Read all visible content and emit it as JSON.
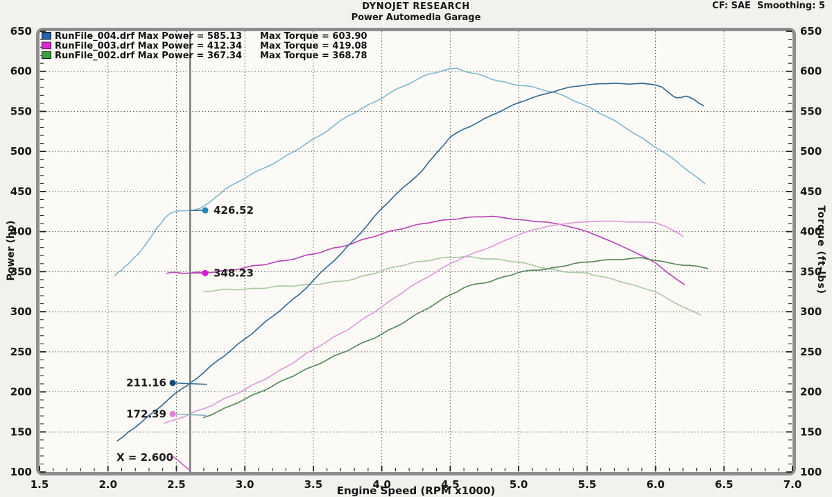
{
  "header": {
    "title": "DYNOJET RESEARCH",
    "subtitle": "Power Automedia Garage",
    "cf_smoothing": "CF: SAE  Smoothing: 5"
  },
  "legend": {
    "rows": [
      {
        "file_power_label": "RunFile_004.drf Max Power = 585.13",
        "torque_label": "Max Torque = 603.90",
        "swatch_color": "#2363ab"
      },
      {
        "file_power_label": "RunFile_003.drf Max Power = 412.34",
        "torque_label": "Max Torque = 419.08",
        "swatch_color": "#df25d4"
      },
      {
        "file_power_label": "RunFile_002.drf Max Power = 367.34",
        "torque_label": "Max Torque = 368.78",
        "swatch_color": "#33a23f"
      }
    ]
  },
  "axes": {
    "x": {
      "label": "Engine Speed (RPM x1000)",
      "min": 1.5,
      "max": 7.0,
      "major_step": 0.5,
      "minor_step": 0.1,
      "tick_labels": [
        "1.5",
        "2.0",
        "2.5",
        "3.0",
        "3.5",
        "4.0",
        "4.5",
        "5.0",
        "5.5",
        "6.0",
        "6.5",
        "7.0"
      ]
    },
    "y_left": {
      "label": "Power (hp)",
      "min": 100,
      "max": 650,
      "major_step": 50,
      "minor_step": 10,
      "tick_labels": [
        "100",
        "150",
        "200",
        "250",
        "300",
        "350",
        "400",
        "450",
        "500",
        "550",
        "600",
        "650"
      ]
    },
    "y_right": {
      "label": "Torque (ft-lbs)",
      "min": 100,
      "max": 650,
      "major_step": 50,
      "minor_step": 10,
      "tick_labels": [
        "100",
        "150",
        "200",
        "250",
        "300",
        "350",
        "400",
        "450",
        "500",
        "550",
        "600",
        "650"
      ]
    }
  },
  "cursor": {
    "x_value": 2.6,
    "x_display": "X = 2.600",
    "readouts": [
      {
        "label": "426.52",
        "value": 426.52,
        "side": "right",
        "dot_color": "#2387b4",
        "leader_color": "#3a6d94"
      },
      {
        "label": "348.23",
        "value": 348.23,
        "side": "right",
        "dot_color": "#e214d4",
        "leader_color": "#b84bb4"
      },
      {
        "label": "211.16",
        "value": 211.16,
        "side": "left",
        "dot_color": "#16497e",
        "leader_color": "#3a6d94"
      },
      {
        "label": "172.39",
        "value": 172.39,
        "side": "left",
        "dot_color": "#e57ddc",
        "leader_color": "#8fb3c8"
      }
    ]
  },
  "chart_data": {
    "type": "line",
    "title": "DYNOJET RESEARCH - Power Automedia Garage",
    "xlabel": "Engine Speed (RPM x1000)",
    "ylabel_left": "Power (hp)",
    "ylabel_right": "Torque (ft-lbs)",
    "xlim": [
      1.5,
      7.0
    ],
    "ylim": [
      100,
      650
    ],
    "grid": "dotted major gridlines every 0.5 RPM and 50 units",
    "legend_position": "top-left inside plot",
    "series": [
      {
        "id": "torque_004",
        "name": "RunFile_004.drf Torque",
        "color": "#88b9cf",
        "max": 603.9,
        "points": [
          [
            2.05,
            345
          ],
          [
            2.1,
            352
          ],
          [
            2.15,
            360
          ],
          [
            2.22,
            372
          ],
          [
            2.3,
            390
          ],
          [
            2.36,
            405
          ],
          [
            2.42,
            418
          ],
          [
            2.47,
            424
          ],
          [
            2.52,
            426
          ],
          [
            2.6,
            426.52
          ],
          [
            2.65,
            428
          ],
          [
            2.7,
            432
          ],
          [
            2.78,
            442
          ],
          [
            2.85,
            452
          ],
          [
            2.95,
            462
          ],
          [
            3.05,
            472
          ],
          [
            3.15,
            480
          ],
          [
            3.25,
            489
          ],
          [
            3.35,
            499
          ],
          [
            3.45,
            510
          ],
          [
            3.55,
            520
          ],
          [
            3.65,
            532
          ],
          [
            3.75,
            544
          ],
          [
            3.85,
            553
          ],
          [
            3.95,
            562
          ],
          [
            4.05,
            572
          ],
          [
            4.15,
            581
          ],
          [
            4.25,
            589
          ],
          [
            4.35,
            597
          ],
          [
            4.45,
            601
          ],
          [
            4.55,
            603.9
          ],
          [
            4.65,
            598
          ],
          [
            4.75,
            594
          ],
          [
            4.85,
            588
          ],
          [
            4.95,
            584
          ],
          [
            5.05,
            582
          ],
          [
            5.15,
            578
          ],
          [
            5.25,
            574
          ],
          [
            5.35,
            568
          ],
          [
            5.45,
            560
          ],
          [
            5.55,
            552
          ],
          [
            5.65,
            543
          ],
          [
            5.75,
            533
          ],
          [
            5.85,
            522
          ],
          [
            5.95,
            511
          ],
          [
            6.05,
            500
          ],
          [
            6.15,
            488
          ],
          [
            6.25,
            474
          ],
          [
            6.36,
            460
          ]
        ]
      },
      {
        "id": "torque_003",
        "name": "RunFile_003.drf Torque",
        "color": "#b84bb4",
        "max": 419.08,
        "points": [
          [
            2.43,
            348
          ],
          [
            2.5,
            349
          ],
          [
            2.6,
            348.23
          ],
          [
            2.7,
            349
          ],
          [
            2.8,
            350
          ],
          [
            2.9,
            352
          ],
          [
            3.0,
            355
          ],
          [
            3.1,
            358
          ],
          [
            3.2,
            361
          ],
          [
            3.3,
            364
          ],
          [
            3.4,
            368
          ],
          [
            3.5,
            372
          ],
          [
            3.6,
            377
          ],
          [
            3.7,
            381
          ],
          [
            3.8,
            386
          ],
          [
            3.9,
            392
          ],
          [
            4.0,
            397
          ],
          [
            4.1,
            402
          ],
          [
            4.2,
            406
          ],
          [
            4.3,
            410
          ],
          [
            4.4,
            413
          ],
          [
            4.5,
            415
          ],
          [
            4.6,
            417
          ],
          [
            4.7,
            418.5
          ],
          [
            4.8,
            419.08
          ],
          [
            4.9,
            417
          ],
          [
            5.0,
            415
          ],
          [
            5.1,
            413
          ],
          [
            5.2,
            412
          ],
          [
            5.3,
            409
          ],
          [
            5.4,
            405
          ],
          [
            5.5,
            400
          ],
          [
            5.6,
            393
          ],
          [
            5.7,
            386
          ],
          [
            5.8,
            378
          ],
          [
            5.9,
            370
          ],
          [
            6.0,
            361
          ],
          [
            6.1,
            347
          ],
          [
            6.15,
            341
          ],
          [
            6.21,
            334
          ]
        ]
      },
      {
        "id": "torque_002",
        "name": "RunFile_002.drf Torque",
        "color": "#adcba7",
        "max": 368.78,
        "points": [
          [
            2.7,
            325
          ],
          [
            2.8,
            327
          ],
          [
            2.9,
            328
          ],
          [
            3.0,
            328
          ],
          [
            3.1,
            329
          ],
          [
            3.2,
            331
          ],
          [
            3.3,
            332
          ],
          [
            3.4,
            333
          ],
          [
            3.5,
            334
          ],
          [
            3.6,
            336
          ],
          [
            3.7,
            338
          ],
          [
            3.8,
            341
          ],
          [
            3.9,
            346
          ],
          [
            4.0,
            351
          ],
          [
            4.1,
            356
          ],
          [
            4.2,
            360
          ],
          [
            4.3,
            363
          ],
          [
            4.4,
            366
          ],
          [
            4.5,
            368
          ],
          [
            4.6,
            368.78
          ],
          [
            4.7,
            367
          ],
          [
            4.8,
            366
          ],
          [
            4.9,
            364
          ],
          [
            5.0,
            362
          ],
          [
            5.1,
            358
          ],
          [
            5.2,
            354
          ],
          [
            5.3,
            351
          ],
          [
            5.4,
            349
          ],
          [
            5.5,
            348
          ],
          [
            5.6,
            344
          ],
          [
            5.7,
            340
          ],
          [
            5.8,
            335
          ],
          [
            5.9,
            330
          ],
          [
            6.0,
            325
          ],
          [
            6.1,
            315
          ],
          [
            6.2,
            306
          ],
          [
            6.33,
            296
          ]
        ]
      },
      {
        "id": "power_004",
        "name": "RunFile_004.drf Power",
        "color": "#3a6d94",
        "max": 585.13,
        "points": [
          [
            2.07,
            139
          ],
          [
            2.15,
            150
          ],
          [
            2.25,
            163
          ],
          [
            2.35,
            177
          ],
          [
            2.45,
            192
          ],
          [
            2.55,
            205
          ],
          [
            2.6,
            211.16
          ],
          [
            2.7,
            224
          ],
          [
            2.8,
            239
          ],
          [
            2.9,
            252
          ],
          [
            3.0,
            266
          ],
          [
            3.1,
            280
          ],
          [
            3.2,
            294
          ],
          [
            3.3,
            308
          ],
          [
            3.4,
            322
          ],
          [
            3.5,
            339
          ],
          [
            3.6,
            356
          ],
          [
            3.7,
            372
          ],
          [
            3.8,
            390
          ],
          [
            3.9,
            409
          ],
          [
            4.0,
            429
          ],
          [
            4.1,
            446
          ],
          [
            4.2,
            461
          ],
          [
            4.3,
            477
          ],
          [
            4.4,
            498
          ],
          [
            4.5,
            518
          ],
          [
            4.6,
            528
          ],
          [
            4.7,
            536
          ],
          [
            4.8,
            545
          ],
          [
            4.9,
            553
          ],
          [
            5.0,
            561
          ],
          [
            5.1,
            567
          ],
          [
            5.2,
            572
          ],
          [
            5.3,
            577
          ],
          [
            5.4,
            581
          ],
          [
            5.5,
            583
          ],
          [
            5.6,
            584.5
          ],
          [
            5.7,
            585.13
          ],
          [
            5.8,
            584
          ],
          [
            5.9,
            585
          ],
          [
            6.0,
            583
          ],
          [
            6.05,
            580
          ],
          [
            6.1,
            573
          ],
          [
            6.15,
            567
          ],
          [
            6.22,
            569
          ],
          [
            6.28,
            565
          ],
          [
            6.35,
            557
          ]
        ]
      },
      {
        "id": "power_003",
        "name": "RunFile_003.drf Power",
        "color": "#dd9eda",
        "max": 412.34,
        "points": [
          [
            2.41,
            161
          ],
          [
            2.5,
            166
          ],
          [
            2.6,
            172.39
          ],
          [
            2.7,
            179
          ],
          [
            2.8,
            187
          ],
          [
            2.9,
            195
          ],
          [
            3.0,
            203
          ],
          [
            3.1,
            212
          ],
          [
            3.2,
            221
          ],
          [
            3.3,
            231
          ],
          [
            3.4,
            242
          ],
          [
            3.5,
            253
          ],
          [
            3.6,
            263
          ],
          [
            3.7,
            273
          ],
          [
            3.8,
            283
          ],
          [
            3.9,
            295
          ],
          [
            4.0,
            306
          ],
          [
            4.1,
            318
          ],
          [
            4.2,
            330
          ],
          [
            4.3,
            340
          ],
          [
            4.4,
            350
          ],
          [
            4.5,
            360
          ],
          [
            4.6,
            368
          ],
          [
            4.7,
            375
          ],
          [
            4.8,
            381
          ],
          [
            4.9,
            389
          ],
          [
            5.0,
            396
          ],
          [
            5.1,
            402
          ],
          [
            5.2,
            406
          ],
          [
            5.3,
            409
          ],
          [
            5.4,
            411
          ],
          [
            5.5,
            412.34
          ],
          [
            5.6,
            413
          ],
          [
            5.7,
            413
          ],
          [
            5.8,
            412
          ],
          [
            5.9,
            412
          ],
          [
            6.0,
            411
          ],
          [
            6.05,
            408
          ],
          [
            6.1,
            404
          ],
          [
            6.15,
            399
          ],
          [
            6.2,
            394
          ]
        ]
      },
      {
        "id": "power_002",
        "name": "RunFile_002.drf Power",
        "color": "#5b8a5b",
        "max": 367.34,
        "points": [
          [
            2.7,
            168
          ],
          [
            2.8,
            175
          ],
          [
            2.9,
            183
          ],
          [
            3.0,
            191
          ],
          [
            3.1,
            199
          ],
          [
            3.2,
            207
          ],
          [
            3.3,
            216
          ],
          [
            3.4,
            224
          ],
          [
            3.5,
            232
          ],
          [
            3.6,
            240
          ],
          [
            3.7,
            248
          ],
          [
            3.8,
            256
          ],
          [
            3.9,
            264
          ],
          [
            4.0,
            272
          ],
          [
            4.1,
            281
          ],
          [
            4.2,
            291
          ],
          [
            4.3,
            301
          ],
          [
            4.4,
            311
          ],
          [
            4.5,
            321
          ],
          [
            4.6,
            330
          ],
          [
            4.7,
            335
          ],
          [
            4.8,
            338
          ],
          [
            4.9,
            344
          ],
          [
            5.0,
            349
          ],
          [
            5.1,
            352
          ],
          [
            5.2,
            353
          ],
          [
            5.3,
            356
          ],
          [
            5.4,
            360
          ],
          [
            5.5,
            362
          ],
          [
            5.6,
            364
          ],
          [
            5.7,
            365
          ],
          [
            5.8,
            366
          ],
          [
            5.9,
            367.34
          ],
          [
            6.0,
            364
          ],
          [
            6.1,
            361
          ],
          [
            6.2,
            358
          ],
          [
            6.3,
            357
          ],
          [
            6.38,
            354
          ]
        ]
      }
    ]
  },
  "colors": {
    "page_bg": "#f2f1ed",
    "plot_bg": "#fbfaf6",
    "frame": "#8d8d8d",
    "grid": "#3c3c3c",
    "cursor": "#787878",
    "text": "#161616"
  }
}
